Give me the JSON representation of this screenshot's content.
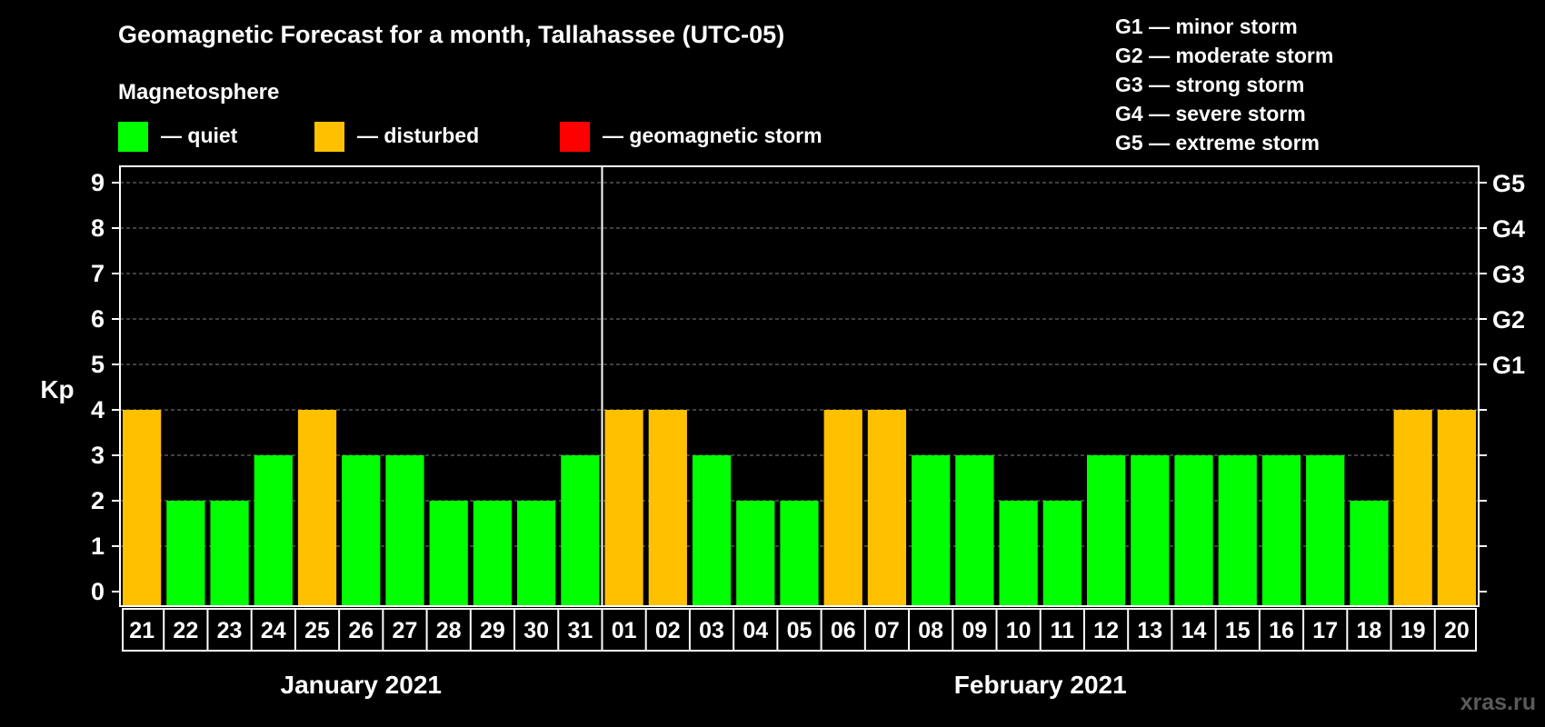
{
  "chart_data": {
    "type": "bar",
    "title": "Geomagnetic Forecast for a month, Tallahassee (UTC-05)",
    "ylabel": "Kp",
    "ylim": [
      0,
      9
    ],
    "yticks": [
      "0",
      "1",
      "2",
      "3",
      "4",
      "5",
      "6",
      "7",
      "8",
      "9"
    ],
    "grid": true,
    "storm_levels": [
      {
        "kp": 5,
        "label": "G1"
      },
      {
        "kp": 6,
        "label": "G2"
      },
      {
        "kp": 7,
        "label": "G3"
      },
      {
        "kp": 8,
        "label": "G4"
      },
      {
        "kp": 9,
        "label": "G5"
      }
    ],
    "legend": {
      "title": "Magnetosphere",
      "items": [
        {
          "label": "— quiet",
          "color": "#00ff00"
        },
        {
          "label": "— disturbed",
          "color": "#ffc000"
        },
        {
          "label": "— geomagnetic storm",
          "color": "#ff0000"
        }
      ]
    },
    "storm_legend": [
      "G1 — minor storm",
      "G2 — moderate storm",
      "G3 — strong storm",
      "G4 — severe storm",
      "G5 — extreme storm"
    ],
    "months": [
      {
        "label": "January 2021",
        "days": [
          "21",
          "22",
          "23",
          "24",
          "25",
          "26",
          "27",
          "28",
          "29",
          "30",
          "31"
        ]
      },
      {
        "label": "February 2021",
        "days": [
          "01",
          "02",
          "03",
          "04",
          "05",
          "06",
          "07",
          "08",
          "09",
          "10",
          "11",
          "12",
          "13",
          "14",
          "15",
          "16",
          "17",
          "18",
          "19",
          "20"
        ]
      }
    ],
    "values": [
      4,
      2,
      2,
      3,
      4,
      3,
      3,
      2,
      2,
      2,
      3,
      4,
      4,
      3,
      2,
      2,
      4,
      4,
      3,
      3,
      2,
      2,
      3,
      3,
      3,
      3,
      3,
      3,
      2,
      4,
      4
    ],
    "colors": {
      "quiet": "#00ff00",
      "disturbed": "#ffc000",
      "storm": "#ff0000",
      "background": "#000000",
      "grid": "#808080",
      "text": "#ffffff"
    }
  },
  "watermark": "xras.ru"
}
